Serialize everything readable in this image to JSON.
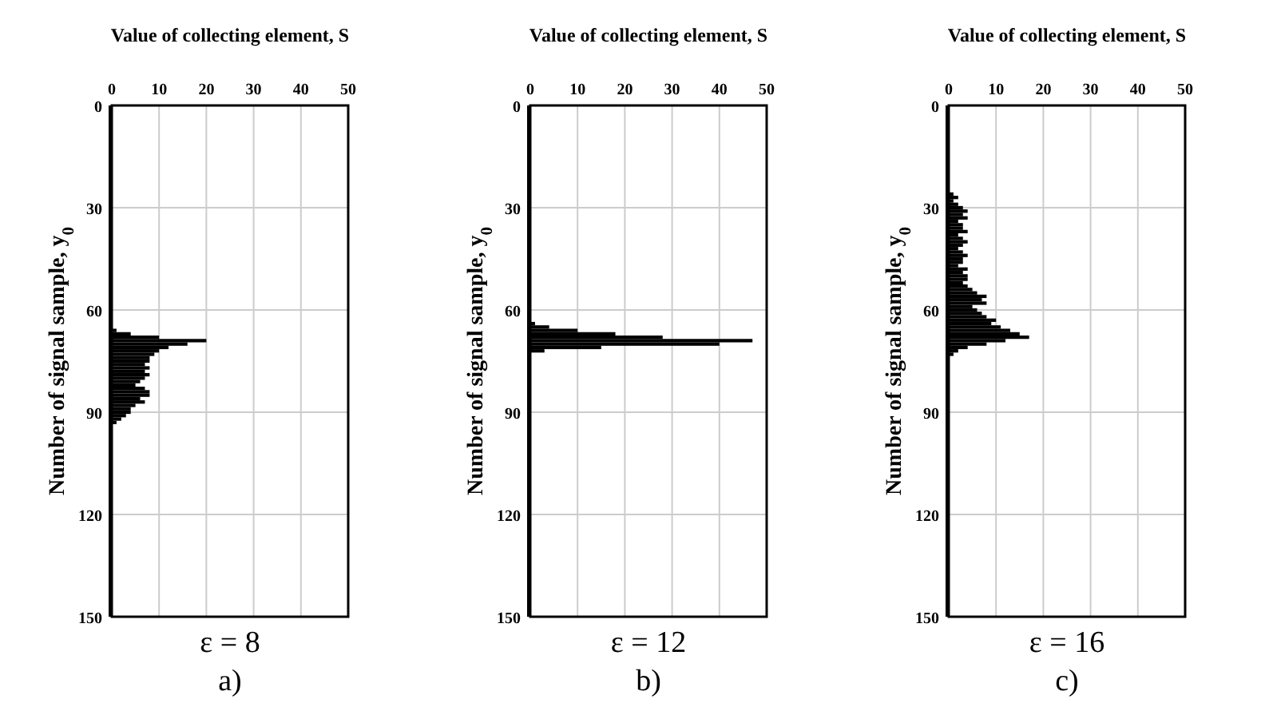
{
  "chart_data": [
    {
      "type": "bar",
      "orientation": "horizontal",
      "xlabel": "Value of collecting element, S",
      "ylabel": "Number of signal sample, y$_{0}$",
      "color": "#000000",
      "xlim": [
        0,
        50
      ],
      "xticks": [
        0,
        10,
        20,
        30,
        40,
        50
      ],
      "ylim": [
        150,
        0
      ],
      "yticks": [
        0,
        30,
        60,
        90,
        120,
        150
      ],
      "grid": true,
      "annotations": [
        "ε = 8",
        "a)"
      ],
      "x": [
        66,
        67,
        68,
        69,
        70,
        71,
        72,
        73,
        74,
        75,
        76,
        77,
        78,
        79,
        80,
        81,
        82,
        83,
        84,
        85,
        86,
        87,
        88,
        89,
        90,
        91,
        92,
        93
      ],
      "values": [
        1,
        4,
        10,
        20,
        16,
        12,
        10,
        9,
        8,
        8,
        7,
        8,
        7,
        8,
        7,
        6,
        5,
        7,
        8,
        8,
        6,
        7,
        5,
        4,
        4,
        3,
        2,
        1
      ]
    },
    {
      "type": "bar",
      "orientation": "horizontal",
      "xlabel": "Value of collecting element, S",
      "ylabel": "Number of signal sample, y$_{0}$",
      "color": "#000000",
      "xlim": [
        0,
        50
      ],
      "xticks": [
        0,
        10,
        20,
        30,
        40,
        50
      ],
      "ylim": [
        150,
        0
      ],
      "yticks": [
        0,
        30,
        60,
        90,
        120,
        150
      ],
      "grid": true,
      "annotations": [
        "ε = 12",
        "b)"
      ],
      "x": [
        64,
        65,
        66,
        67,
        68,
        69,
        70,
        71,
        72
      ],
      "values": [
        1,
        4,
        10,
        18,
        28,
        47,
        40,
        15,
        3
      ]
    },
    {
      "type": "bar",
      "orientation": "horizontal",
      "xlabel": "Value of collecting element, S",
      "ylabel": "Number of signal sample, y$_{0}$",
      "color": "#000000",
      "xlim": [
        0,
        50
      ],
      "xticks": [
        0,
        10,
        20,
        30,
        40,
        50
      ],
      "ylim": [
        150,
        0
      ],
      "yticks": [
        0,
        30,
        60,
        90,
        120,
        150
      ],
      "grid": true,
      "annotations": [
        "ε = 16",
        "c)"
      ],
      "x": [
        26,
        27,
        28,
        29,
        30,
        31,
        32,
        33,
        34,
        35,
        36,
        37,
        38,
        39,
        40,
        41,
        42,
        43,
        44,
        45,
        46,
        47,
        48,
        49,
        50,
        51,
        52,
        53,
        54,
        55,
        56,
        57,
        58,
        59,
        60,
        61,
        62,
        63,
        64,
        65,
        66,
        67,
        68,
        69,
        70,
        71,
        72,
        73
      ],
      "values": [
        1,
        2,
        1,
        2,
        3,
        4,
        3,
        4,
        2,
        3,
        3,
        4,
        2,
        3,
        4,
        3,
        2,
        3,
        4,
        3,
        3,
        2,
        4,
        3,
        4,
        4,
        3,
        4,
        5,
        6,
        8,
        7,
        8,
        5,
        6,
        7,
        8,
        10,
        9,
        11,
        13,
        15,
        17,
        12,
        8,
        4,
        2,
        1
      ]
    }
  ]
}
